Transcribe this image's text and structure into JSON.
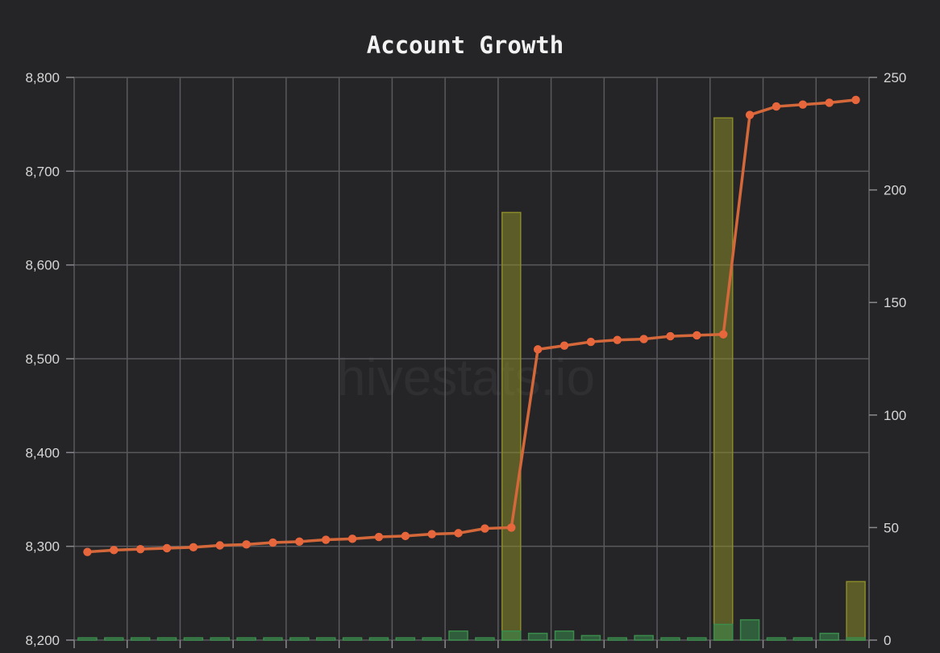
{
  "chart_data": {
    "type": "bar",
    "title": "Account Growth",
    "watermark": "hivestats.io",
    "grid": true,
    "x_count": 30,
    "left_axis": {
      "range": [
        8200,
        8800
      ],
      "ticks": [
        "8,200",
        "8,300",
        "8,400",
        "8,500",
        "8,600",
        "8,700",
        "8,800"
      ],
      "tick_values": [
        8200,
        8300,
        8400,
        8500,
        8600,
        8700,
        8800
      ]
    },
    "right_axis": {
      "range": [
        0,
        250
      ],
      "ticks": [
        "0",
        "50",
        "100",
        "150",
        "200",
        "250"
      ],
      "tick_values": [
        0,
        50,
        100,
        150,
        200,
        250
      ]
    },
    "series": [
      {
        "type": "line",
        "axis": "left",
        "color": "#d4683a",
        "point_color": "#e8663c",
        "values": [
          8294,
          8296,
          8297,
          8298,
          8299,
          8301,
          8302,
          8304,
          8305,
          8307,
          8308,
          8310,
          8311,
          8313,
          8314,
          8319,
          8320,
          8510,
          8514,
          8518,
          8520,
          8521,
          8524,
          8525,
          8526,
          8760,
          8769,
          8771,
          8773,
          8776
        ]
      },
      {
        "type": "bar",
        "axis": "right",
        "color": "#3a8c4c",
        "values": [
          1,
          1,
          1,
          1,
          1,
          1,
          1,
          1,
          1,
          1,
          1,
          1,
          1,
          1,
          4,
          1,
          4,
          3,
          4,
          2,
          1,
          2,
          1,
          1,
          7,
          9,
          1,
          1,
          3,
          1
        ]
      },
      {
        "type": "bar",
        "axis": "right",
        "color": "#8a8a2a",
        "values": [
          0,
          0,
          0,
          0,
          0,
          0,
          0,
          0,
          0,
          0,
          0,
          0,
          0,
          0,
          0,
          0,
          190,
          0,
          0,
          0,
          0,
          0,
          0,
          0,
          232,
          0,
          0,
          0,
          0,
          26
        ]
      }
    ]
  }
}
